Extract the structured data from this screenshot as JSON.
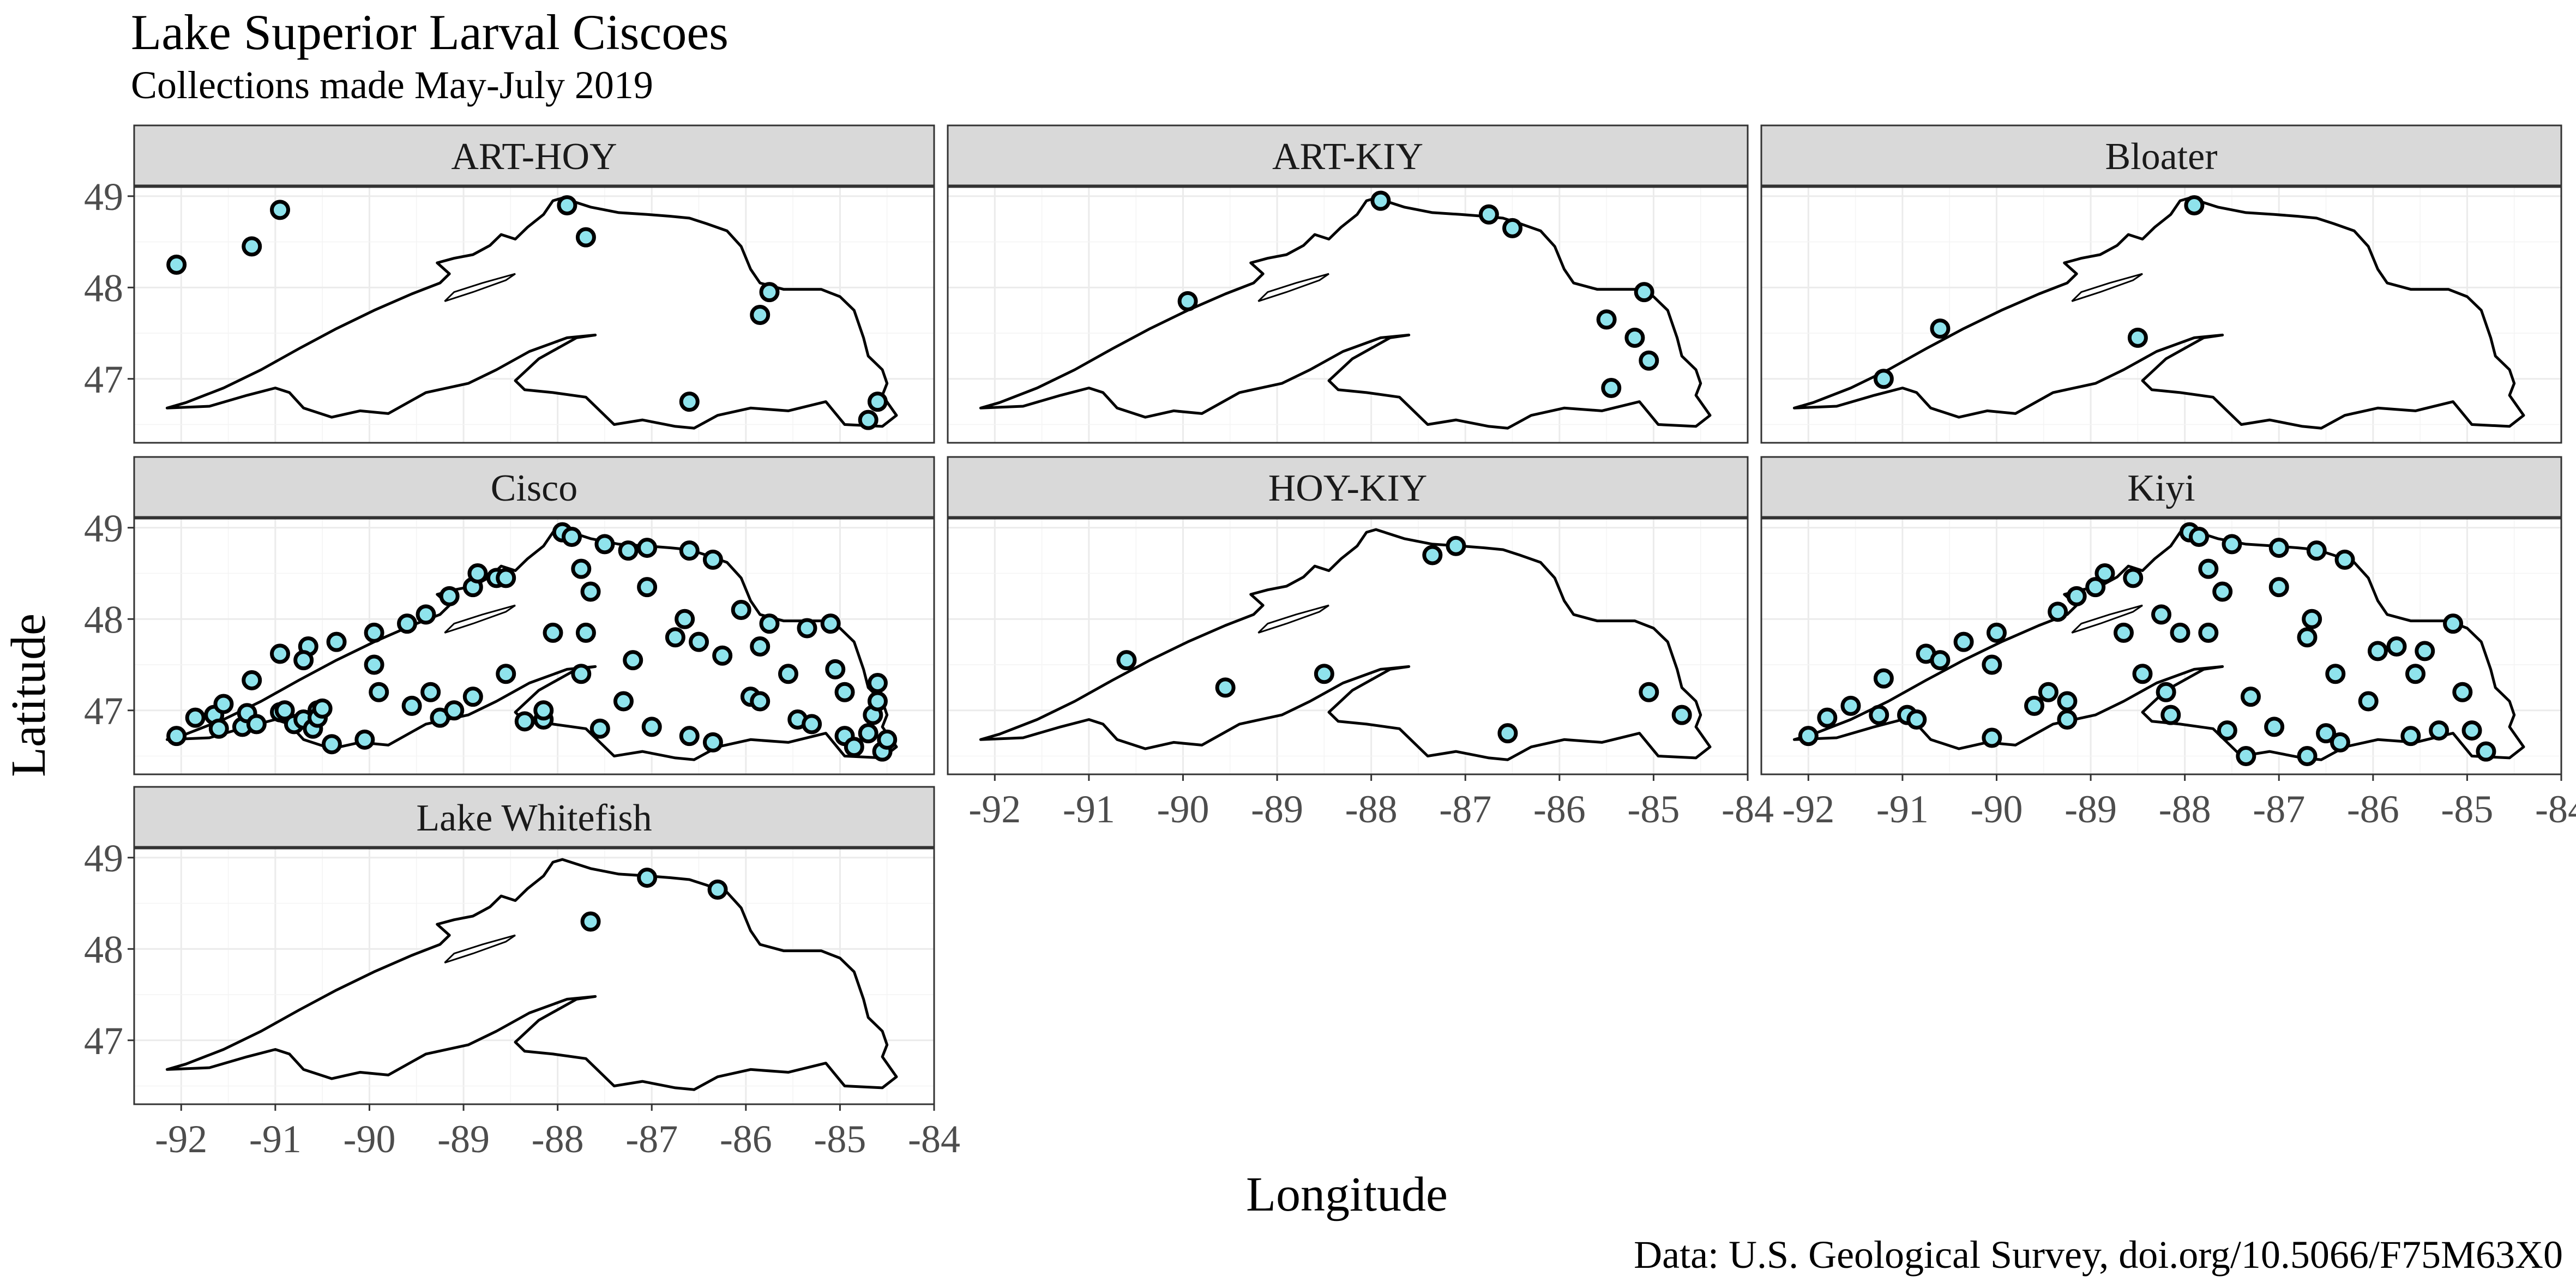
{
  "chart_data": {
    "type": "scatter",
    "title": "Lake Superior Larval Ciscoes",
    "subtitle": "Collections made May-July 2019",
    "xlabel": "Longitude",
    "ylabel": "Latitude",
    "caption": "Data: U.S. Geological Survey, doi.org/10.5066/F75M63X0",
    "xlim": [
      -92.5,
      -84
    ],
    "ylim": [
      46.3,
      49.1
    ],
    "x_ticks": [
      -92,
      -91,
      -90,
      -89,
      -88,
      -87,
      -86,
      -85,
      -84
    ],
    "y_ticks": [
      47,
      48,
      49
    ],
    "grid": true,
    "point_fill": "#8fe3ec",
    "point_stroke": "#000000",
    "strip_fill": "#d9d9d9",
    "panels": [
      {
        "name": "ART-HOY",
        "points": [
          {
            "x": -92.05,
            "y": 48.25
          },
          {
            "x": -91.25,
            "y": 48.45
          },
          {
            "x": -90.95,
            "y": 48.85
          },
          {
            "x": -87.7,
            "y": 48.55
          },
          {
            "x": -85.85,
            "y": 47.7
          },
          {
            "x": -85.75,
            "y": 47.95
          },
          {
            "x": -86.6,
            "y": 46.75
          },
          {
            "x": -84.7,
            "y": 46.55
          },
          {
            "x": -84.6,
            "y": 46.75
          },
          {
            "x": -87.9,
            "y": 48.9
          }
        ]
      },
      {
        "name": "ART-KIY",
        "points": [
          {
            "x": -89.95,
            "y": 47.85
          },
          {
            "x": -87.9,
            "y": 48.95
          },
          {
            "x": -86.75,
            "y": 48.8
          },
          {
            "x": -86.5,
            "y": 48.65
          },
          {
            "x": -85.5,
            "y": 47.65
          },
          {
            "x": -85.2,
            "y": 47.45
          },
          {
            "x": -85.1,
            "y": 47.95
          },
          {
            "x": -85.05,
            "y": 47.2
          },
          {
            "x": -85.45,
            "y": 46.9
          }
        ]
      },
      {
        "name": "Bloater",
        "points": [
          {
            "x": -91.2,
            "y": 47.0
          },
          {
            "x": -90.6,
            "y": 47.55
          },
          {
            "x": -88.5,
            "y": 47.45
          },
          {
            "x": -87.9,
            "y": 48.9
          }
        ]
      },
      {
        "name": "Cisco",
        "points": [
          {
            "x": -92.05,
            "y": 46.72
          },
          {
            "x": -91.85,
            "y": 46.92
          },
          {
            "x": -91.65,
            "y": 46.95
          },
          {
            "x": -91.6,
            "y": 46.8
          },
          {
            "x": -91.55,
            "y": 47.07
          },
          {
            "x": -91.35,
            "y": 46.82
          },
          {
            "x": -91.25,
            "y": 47.33
          },
          {
            "x": -91.3,
            "y": 46.97
          },
          {
            "x": -91.2,
            "y": 46.85
          },
          {
            "x": -90.95,
            "y": 46.98
          },
          {
            "x": -90.9,
            "y": 47.0
          },
          {
            "x": -90.8,
            "y": 46.85
          },
          {
            "x": -90.7,
            "y": 46.9
          },
          {
            "x": -90.6,
            "y": 46.8
          },
          {
            "x": -90.55,
            "y": 47.0
          },
          {
            "x": -90.55,
            "y": 46.92
          },
          {
            "x": -90.5,
            "y": 47.02
          },
          {
            "x": -90.4,
            "y": 46.63
          },
          {
            "x": -90.05,
            "y": 46.68
          },
          {
            "x": -90.95,
            "y": 47.62
          },
          {
            "x": -90.65,
            "y": 47.7
          },
          {
            "x": -90.7,
            "y": 47.55
          },
          {
            "x": -90.35,
            "y": 47.75
          },
          {
            "x": -89.95,
            "y": 47.85
          },
          {
            "x": -89.95,
            "y": 47.5
          },
          {
            "x": -89.9,
            "y": 47.2
          },
          {
            "x": -89.6,
            "y": 47.95
          },
          {
            "x": -89.4,
            "y": 48.05
          },
          {
            "x": -89.15,
            "y": 48.25
          },
          {
            "x": -88.9,
            "y": 48.35
          },
          {
            "x": -88.85,
            "y": 48.5
          },
          {
            "x": -88.65,
            "y": 48.45
          },
          {
            "x": -89.55,
            "y": 47.05
          },
          {
            "x": -89.35,
            "y": 47.2
          },
          {
            "x": -89.25,
            "y": 46.92
          },
          {
            "x": -89.1,
            "y": 47.0
          },
          {
            "x": -88.9,
            "y": 47.15
          },
          {
            "x": -88.55,
            "y": 47.4
          },
          {
            "x": -88.35,
            "y": 46.88
          },
          {
            "x": -88.15,
            "y": 46.9
          },
          {
            "x": -88.15,
            "y": 47.0
          },
          {
            "x": -88.05,
            "y": 47.85
          },
          {
            "x": -87.95,
            "y": 48.95
          },
          {
            "x": -87.85,
            "y": 48.9
          },
          {
            "x": -87.75,
            "y": 48.55
          },
          {
            "x": -87.65,
            "y": 48.3
          },
          {
            "x": -87.5,
            "y": 48.82
          },
          {
            "x": -87.25,
            "y": 48.75
          },
          {
            "x": -87.05,
            "y": 48.78
          },
          {
            "x": -87.05,
            "y": 48.35
          },
          {
            "x": -86.75,
            "y": 47.8
          },
          {
            "x": -86.65,
            "y": 48.0
          },
          {
            "x": -86.6,
            "y": 48.75
          },
          {
            "x": -86.35,
            "y": 48.65
          },
          {
            "x": -87.7,
            "y": 47.85
          },
          {
            "x": -87.75,
            "y": 47.4
          },
          {
            "x": -87.55,
            "y": 46.8
          },
          {
            "x": -87.3,
            "y": 47.1
          },
          {
            "x": -87.2,
            "y": 47.55
          },
          {
            "x": -87.0,
            "y": 46.82
          },
          {
            "x": -86.6,
            "y": 46.72
          },
          {
            "x": -86.35,
            "y": 46.65
          },
          {
            "x": -86.25,
            "y": 47.6
          },
          {
            "x": -86.05,
            "y": 48.1
          },
          {
            "x": -85.95,
            "y": 47.15
          },
          {
            "x": -85.85,
            "y": 47.1
          },
          {
            "x": -85.85,
            "y": 47.7
          },
          {
            "x": -85.75,
            "y": 47.95
          },
          {
            "x": -85.55,
            "y": 47.4
          },
          {
            "x": -85.45,
            "y": 46.9
          },
          {
            "x": -85.35,
            "y": 47.9
          },
          {
            "x": -85.3,
            "y": 46.85
          },
          {
            "x": -85.1,
            "y": 47.95
          },
          {
            "x": -85.05,
            "y": 47.45
          },
          {
            "x": -84.95,
            "y": 47.2
          },
          {
            "x": -84.95,
            "y": 46.72
          },
          {
            "x": -84.85,
            "y": 46.6
          },
          {
            "x": -84.7,
            "y": 46.75
          },
          {
            "x": -84.65,
            "y": 46.95
          },
          {
            "x": -84.6,
            "y": 47.3
          },
          {
            "x": -84.6,
            "y": 47.1
          },
          {
            "x": -84.55,
            "y": 46.55
          },
          {
            "x": -84.5,
            "y": 46.68
          },
          {
            "x": -86.5,
            "y": 47.75
          },
          {
            "x": -88.55,
            "y": 48.45
          }
        ]
      },
      {
        "name": "HOY-KIY",
        "points": [
          {
            "x": -90.6,
            "y": 47.55
          },
          {
            "x": -89.55,
            "y": 47.25
          },
          {
            "x": -88.5,
            "y": 47.4
          },
          {
            "x": -87.35,
            "y": 48.7
          },
          {
            "x": -87.1,
            "y": 48.8
          },
          {
            "x": -86.55,
            "y": 46.75
          },
          {
            "x": -85.05,
            "y": 47.2
          },
          {
            "x": -84.7,
            "y": 46.95
          }
        ]
      },
      {
        "name": "Kiyi",
        "points": [
          {
            "x": -92.0,
            "y": 46.72
          },
          {
            "x": -91.8,
            "y": 46.92
          },
          {
            "x": -91.55,
            "y": 47.05
          },
          {
            "x": -91.2,
            "y": 47.35
          },
          {
            "x": -91.25,
            "y": 46.95
          },
          {
            "x": -90.95,
            "y": 46.95
          },
          {
            "x": -90.85,
            "y": 46.9
          },
          {
            "x": -90.75,
            "y": 47.62
          },
          {
            "x": -90.6,
            "y": 47.55
          },
          {
            "x": -90.35,
            "y": 47.75
          },
          {
            "x": -90.0,
            "y": 47.85
          },
          {
            "x": -90.05,
            "y": 47.5
          },
          {
            "x": -90.05,
            "y": 46.7
          },
          {
            "x": -89.6,
            "y": 47.05
          },
          {
            "x": -89.45,
            "y": 47.2
          },
          {
            "x": -89.25,
            "y": 47.1
          },
          {
            "x": -89.25,
            "y": 46.9
          },
          {
            "x": -89.35,
            "y": 48.08
          },
          {
            "x": -89.15,
            "y": 48.25
          },
          {
            "x": -88.95,
            "y": 48.35
          },
          {
            "x": -88.85,
            "y": 48.5
          },
          {
            "x": -88.55,
            "y": 48.45
          },
          {
            "x": -88.65,
            "y": 47.85
          },
          {
            "x": -88.45,
            "y": 47.4
          },
          {
            "x": -88.25,
            "y": 48.05
          },
          {
            "x": -88.2,
            "y": 47.2
          },
          {
            "x": -88.15,
            "y": 46.95
          },
          {
            "x": -88.05,
            "y": 47.85
          },
          {
            "x": -87.95,
            "y": 48.95
          },
          {
            "x": -87.85,
            "y": 48.9
          },
          {
            "x": -87.75,
            "y": 48.55
          },
          {
            "x": -87.6,
            "y": 48.3
          },
          {
            "x": -87.5,
            "y": 48.82
          },
          {
            "x": -87.75,
            "y": 47.85
          },
          {
            "x": -87.55,
            "y": 46.78
          },
          {
            "x": -87.3,
            "y": 47.15
          },
          {
            "x": -87.35,
            "y": 46.5
          },
          {
            "x": -87.0,
            "y": 48.78
          },
          {
            "x": -87.0,
            "y": 48.35
          },
          {
            "x": -87.05,
            "y": 46.82
          },
          {
            "x": -86.65,
            "y": 48.0
          },
          {
            "x": -86.7,
            "y": 47.8
          },
          {
            "x": -86.6,
            "y": 48.75
          },
          {
            "x": -86.7,
            "y": 46.5
          },
          {
            "x": -86.5,
            "y": 46.75
          },
          {
            "x": -86.4,
            "y": 47.4
          },
          {
            "x": -86.3,
            "y": 48.65
          },
          {
            "x": -86.35,
            "y": 46.65
          },
          {
            "x": -86.05,
            "y": 47.1
          },
          {
            "x": -85.95,
            "y": 47.65
          },
          {
            "x": -85.75,
            "y": 47.7
          },
          {
            "x": -85.55,
            "y": 47.4
          },
          {
            "x": -85.45,
            "y": 47.65
          },
          {
            "x": -85.6,
            "y": 46.72
          },
          {
            "x": -85.3,
            "y": 46.78
          },
          {
            "x": -85.15,
            "y": 47.95
          },
          {
            "x": -85.05,
            "y": 47.2
          },
          {
            "x": -84.95,
            "y": 46.78
          },
          {
            "x": -84.8,
            "y": 46.55
          }
        ]
      },
      {
        "name": "Lake Whitefish",
        "points": [
          {
            "x": -87.65,
            "y": 48.3
          },
          {
            "x": -87.05,
            "y": 48.78
          },
          {
            "x": -86.3,
            "y": 48.65
          }
        ]
      }
    ]
  }
}
